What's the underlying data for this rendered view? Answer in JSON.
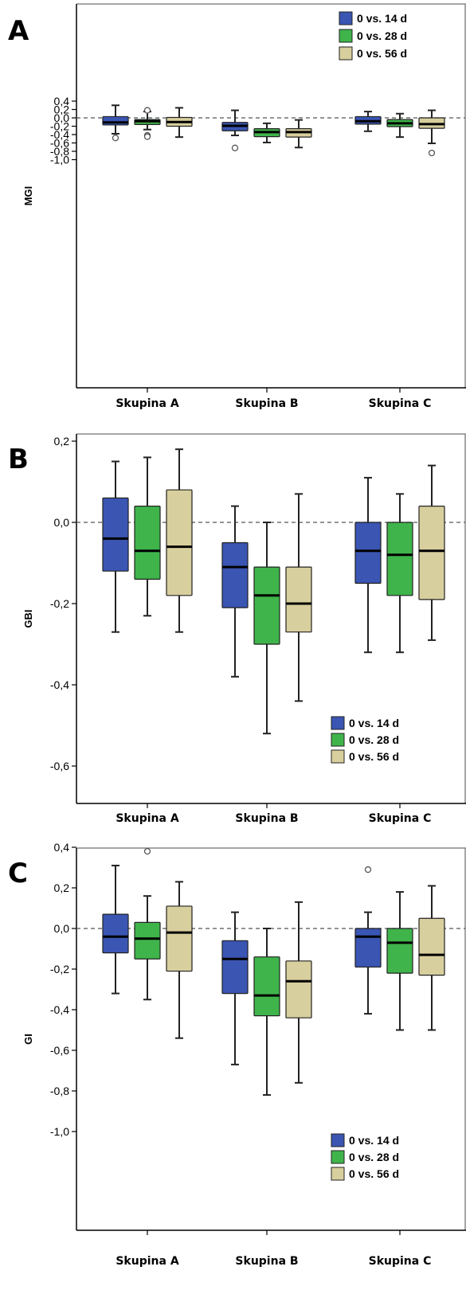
{
  "colors": {
    "series": [
      "#3a55b2",
      "#3fb44b",
      "#d8cf9e"
    ],
    "box_stroke": "#222222",
    "axis": "#000000",
    "frame": "#888888",
    "zero_line": "#555555"
  },
  "chart_data": [
    {
      "type": "box",
      "panel_label": "A",
      "ylabel": "MGI",
      "categories": [
        "Skupina A",
        "Skupina B",
        "Skupina C"
      ],
      "yticks": [
        0.4,
        0.2,
        0.0,
        -0.2,
        -0.4,
        -0.6,
        -0.8,
        -1.0
      ],
      "ytick_labels": [
        "0,4",
        "0,2",
        "0,0",
        "-0,2",
        "-0,4",
        "-0,6",
        "-0,8",
        "-1,0"
      ],
      "ylim": [
        -1.05,
        0.43
      ],
      "reference_line": 0.0,
      "legend": {
        "position": "top-right",
        "entries": [
          "0 vs. 14 d",
          "0 vs. 28 d",
          "0 vs. 56 d"
        ]
      },
      "series": [
        {
          "name": "0 vs. 14 d",
          "boxes": [
            {
              "whisker_low": -0.38,
              "q1": -0.17,
              "median": -0.11,
              "q3": 0.03,
              "whisker_high": 0.3,
              "outliers": [
                -0.48
              ]
            },
            {
              "whisker_low": -0.42,
              "q1": -0.31,
              "median": -0.19,
              "q3": -0.11,
              "whisker_high": 0.18,
              "outliers": [
                -0.72
              ]
            },
            {
              "whisker_low": -0.32,
              "q1": -0.15,
              "median": -0.08,
              "q3": 0.03,
              "whisker_high": 0.15,
              "outliers": []
            }
          ]
        },
        {
          "name": "0 vs. 28 d",
          "boxes": [
            {
              "whisker_low": -0.28,
              "q1": -0.16,
              "median": -0.08,
              "q3": -0.04,
              "whisker_high": 0.15,
              "outliers": [
                0.18,
                -0.42,
                -0.45
              ]
            },
            {
              "whisker_low": -0.59,
              "q1": -0.45,
              "median": -0.34,
              "q3": -0.26,
              "whisker_high": -0.13,
              "outliers": []
            },
            {
              "whisker_low": -0.46,
              "q1": -0.21,
              "median": -0.13,
              "q3": -0.04,
              "whisker_high": 0.1,
              "outliers": []
            }
          ]
        },
        {
          "name": "0 vs. 56 d",
          "boxes": [
            {
              "whisker_low": -0.46,
              "q1": -0.2,
              "median": -0.1,
              "q3": 0.01,
              "whisker_high": 0.24,
              "outliers": []
            },
            {
              "whisker_low": -0.71,
              "q1": -0.46,
              "median": -0.34,
              "q3": -0.26,
              "whisker_high": -0.05,
              "outliers": []
            },
            {
              "whisker_low": -0.61,
              "q1": -0.25,
              "median": -0.15,
              "q3": 0.0,
              "whisker_high": 0.18,
              "outliers": [
                -0.84
              ]
            }
          ]
        }
      ]
    },
    {
      "type": "box",
      "panel_label": "B",
      "ylabel": "GBI",
      "categories": [
        "Skupina A",
        "Skupina B",
        "Skupina C"
      ],
      "yticks": [
        0.2,
        0.0,
        -0.2,
        -0.4,
        -0.6
      ],
      "ytick_labels": [
        "0,2",
        "0,0",
        "-0,2",
        "-0,4",
        "-0,6"
      ],
      "ylim": [
        -0.63,
        0.22
      ],
      "reference_line": 0.0,
      "legend": {
        "position": "bottom-right",
        "entries": [
          "0 vs. 14 d",
          "0 vs. 28 d",
          "0 vs. 56 d"
        ]
      },
      "series": [
        {
          "name": "0 vs. 14 d",
          "boxes": [
            {
              "whisker_low": -0.27,
              "q1": -0.12,
              "median": -0.04,
              "q3": 0.06,
              "whisker_high": 0.15,
              "outliers": []
            },
            {
              "whisker_low": -0.38,
              "q1": -0.21,
              "median": -0.11,
              "q3": -0.05,
              "whisker_high": 0.04,
              "outliers": []
            },
            {
              "whisker_low": -0.32,
              "q1": -0.15,
              "median": -0.07,
              "q3": 0.0,
              "whisker_high": 0.11,
              "outliers": []
            }
          ]
        },
        {
          "name": "0 vs. 28 d",
          "boxes": [
            {
              "whisker_low": -0.23,
              "q1": -0.14,
              "median": -0.07,
              "q3": 0.04,
              "whisker_high": 0.16,
              "outliers": []
            },
            {
              "whisker_low": -0.52,
              "q1": -0.3,
              "median": -0.18,
              "q3": -0.11,
              "whisker_high": 0.0,
              "outliers": []
            },
            {
              "whisker_low": -0.32,
              "q1": -0.18,
              "median": -0.08,
              "q3": 0.0,
              "whisker_high": 0.07,
              "outliers": []
            }
          ]
        },
        {
          "name": "0 vs. 56 d",
          "boxes": [
            {
              "whisker_low": -0.27,
              "q1": -0.18,
              "median": -0.06,
              "q3": 0.08,
              "whisker_high": 0.18,
              "outliers": []
            },
            {
              "whisker_low": -0.44,
              "q1": -0.27,
              "median": -0.2,
              "q3": -0.11,
              "whisker_high": 0.07,
              "outliers": []
            },
            {
              "whisker_low": -0.29,
              "q1": -0.19,
              "median": -0.07,
              "q3": 0.04,
              "whisker_high": 0.14,
              "outliers": []
            }
          ]
        }
      ]
    },
    {
      "type": "box",
      "panel_label": "C",
      "ylabel": "GI",
      "categories": [
        "Skupina A",
        "Skupina B",
        "Skupina C"
      ],
      "yticks": [
        0.4,
        0.2,
        0.0,
        -0.2,
        -0.4,
        -0.6,
        -0.8,
        -1.0
      ],
      "ytick_labels": [
        "0,4",
        "0,2",
        "0,0",
        "-0,2",
        "-0,4",
        "-0,6",
        "-0,8",
        "-1,0"
      ],
      "ylim": [
        -1.05,
        0.43
      ],
      "reference_line": 0.0,
      "legend": {
        "position": "bottom-right",
        "entries": [
          "0 vs. 14 d",
          "0 vs. 28 d",
          "0 vs. 56 d"
        ]
      },
      "series": [
        {
          "name": "0 vs. 14 d",
          "boxes": [
            {
              "whisker_low": -0.32,
              "q1": -0.12,
              "median": -0.04,
              "q3": 0.07,
              "whisker_high": 0.31,
              "outliers": []
            },
            {
              "whisker_low": -0.67,
              "q1": -0.32,
              "median": -0.15,
              "q3": -0.06,
              "whisker_high": 0.08,
              "outliers": []
            },
            {
              "whisker_low": -0.42,
              "q1": -0.19,
              "median": -0.04,
              "q3": 0.0,
              "whisker_high": 0.08,
              "outliers": [
                0.29
              ]
            }
          ]
        },
        {
          "name": "0 vs. 28 d",
          "boxes": [
            {
              "whisker_low": -0.35,
              "q1": -0.15,
              "median": -0.05,
              "q3": 0.03,
              "whisker_high": 0.16,
              "outliers": [
                0.38
              ]
            },
            {
              "whisker_low": -0.82,
              "q1": -0.43,
              "median": -0.33,
              "q3": -0.14,
              "whisker_high": 0.0,
              "outliers": []
            },
            {
              "whisker_low": -0.5,
              "q1": -0.22,
              "median": -0.07,
              "q3": 0.0,
              "whisker_high": 0.18,
              "outliers": []
            }
          ]
        },
        {
          "name": "0 vs. 56 d",
          "boxes": [
            {
              "whisker_low": -0.54,
              "q1": -0.21,
              "median": -0.02,
              "q3": 0.11,
              "whisker_high": 0.23,
              "outliers": []
            },
            {
              "whisker_low": -0.76,
              "q1": -0.44,
              "median": -0.26,
              "q3": -0.16,
              "whisker_high": 0.13,
              "outliers": []
            },
            {
              "whisker_low": -0.5,
              "q1": -0.23,
              "median": -0.13,
              "q3": 0.05,
              "whisker_high": 0.21,
              "outliers": []
            }
          ]
        }
      ]
    }
  ]
}
